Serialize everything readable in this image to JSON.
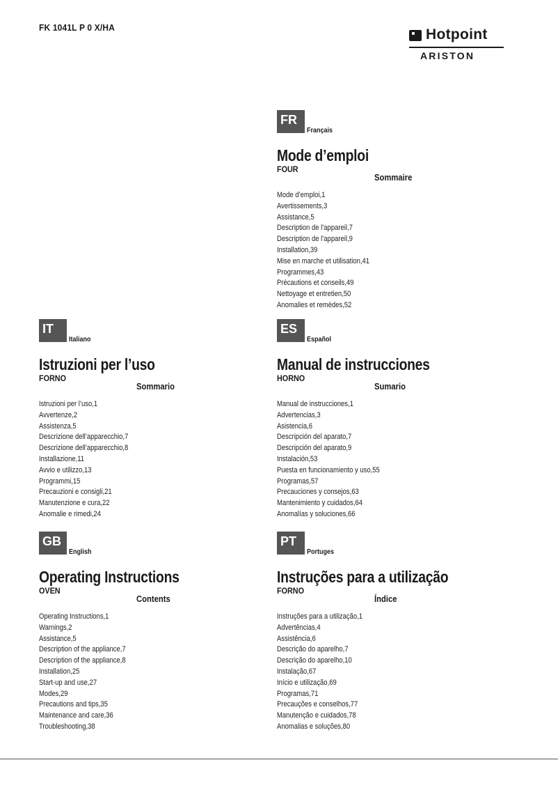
{
  "header": {
    "model": "FK 1041L P 0 X/HA"
  },
  "logo": {
    "brand": "Hotpoint",
    "sub_brand": "ARISTON"
  },
  "sections": [
    {
      "code": "FR",
      "language": "Français",
      "title": "Mode d’emploi",
      "subtitle": "FOUR",
      "contents_title": "Sommaire",
      "items": [
        "Mode d’emploi,1",
        "Avertissements,3",
        "Assistance,5",
        "Description de l’appareil,7",
        "Description de l’appareil,9",
        "Installation,39",
        "Mise en marche et utilisation,41",
        "Programmes,43",
        "Précautions et conseils,49",
        "Nettoyage et entretien,50",
        "Anomalies et remèdes,52"
      ]
    },
    {
      "code": "IT",
      "language": "Italiano",
      "title": "Istruzioni per l’uso",
      "subtitle": "FORNO",
      "contents_title": "Sommario",
      "items": [
        "Istruzioni per l’uso,1",
        "Avvertenze,2",
        "Assistenza,5",
        "Descrizione dell’apparecchio,7",
        "Descrizione dell’apparecchio,8",
        "Installazione,11",
        "Avvio e utilizzo,13",
        "Programmi,15",
        "Precauzioni e consigli,21",
        "Manutenzione e cura,22",
        "Anomalie e rimedi,24"
      ]
    },
    {
      "code": "ES",
      "language": "Español",
      "title": "Manual de instrucciones",
      "subtitle": "HORNO",
      "contents_title": "Sumario",
      "items": [
        "Manual de instrucciones,1",
        "Advertencias,3",
        "Asistencia,6",
        "Descripción del aparato,7",
        "Descripción del aparato,9",
        "Instalación,53",
        "Puesta en funcionamiento y uso,55",
        "Programas,57",
        "Precauciones y consejos,63",
        "Mantenimiento y cuidados,64",
        "Anomalías y soluciones,66"
      ]
    },
    {
      "code": "GB",
      "language": "English",
      "title": "Operating Instructions",
      "subtitle": "OVEN",
      "contents_title": "Contents",
      "items": [
        "Operating Instructions,1",
        "Warnings,2",
        "Assistance,5",
        "Description of the appliance,7",
        "Description of the appliance,8",
        "Installation,25",
        "Start-up and use,27",
        "Modes,29",
        "Precautions and tips,35",
        "Maintenance and care,36",
        "Troubleshooting,38"
      ]
    },
    {
      "code": "PT",
      "language": "Portuges",
      "title": "Instruções para a utilização",
      "subtitle": "FORNO",
      "contents_title": "Índice",
      "items": [
        "Instruções para a utilização,1",
        "Advertências,4",
        "Assistência,6",
        "Descrição do aparelho,7",
        "Descrição do aparelho,10",
        "Instalação,67",
        "Início e utilização,69",
        "Programas,71",
        "Precauções e conselhos,77",
        "Manutenção e cuidados,78",
        "Anomalias e soluções,80"
      ]
    }
  ]
}
